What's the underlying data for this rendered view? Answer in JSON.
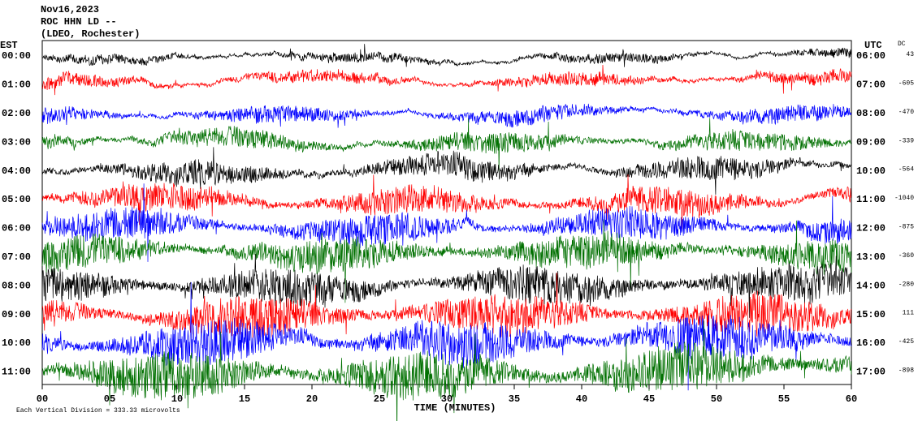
{
  "chart_data": {
    "type": "helicorder",
    "title_lines": [
      "Nov16,2023",
      "ROC HHN LD --",
      "(LDEO, Rochester)"
    ],
    "left_axis_label": "EST",
    "right_axis_label": "UTC",
    "dc_label": "DC",
    "rows_est": [
      "00:00",
      "01:00",
      "02:00",
      "03:00",
      "04:00",
      "05:00",
      "06:00",
      "07:00",
      "08:00",
      "09:00",
      "10:00",
      "11:00"
    ],
    "rows_utc": [
      "06:00",
      "07:00",
      "08:00",
      "09:00",
      "10:00",
      "11:00",
      "12:00",
      "13:00",
      "14:00",
      "15:00",
      "16:00",
      "17:00"
    ],
    "dc": [
      43,
      -605,
      -470,
      -339,
      -564,
      -1040,
      -875,
      -360,
      -280,
      111,
      -425,
      -898
    ],
    "colors": [
      "#000000",
      "#ff0000",
      "#0000ff",
      "#007000"
    ],
    "xlim": [
      0,
      60
    ],
    "xticks": [
      {
        "value": 0,
        "label": "00"
      },
      {
        "value": 5,
        "label": "05"
      },
      10,
      15,
      20,
      25,
      30,
      35,
      40,
      45,
      50,
      55,
      60
    ],
    "xlabel": "TIME (MINUTES)",
    "footer": "Each Vertical Division = 333.33 microvolts"
  }
}
